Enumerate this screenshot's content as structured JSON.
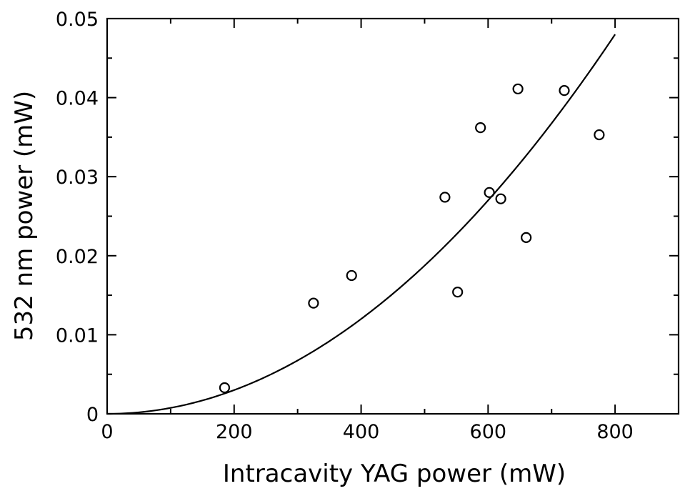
{
  "chart_data": {
    "type": "scatter",
    "title": "",
    "xlabel": "Intracavity YAG power (mW)",
    "ylabel": "532 nm power (mW)",
    "xlim": [
      0,
      900
    ],
    "ylim": [
      0,
      0.05
    ],
    "x_ticks": [
      0,
      200,
      400,
      600,
      800
    ],
    "x_tick_labels": [
      "0",
      "200",
      "400",
      "600",
      "800"
    ],
    "y_ticks": [
      0,
      0.01,
      0.02,
      0.03,
      0.04,
      0.05
    ],
    "y_tick_labels": [
      "0",
      "0.01",
      "0.02",
      "0.03",
      "0.04",
      "0.05"
    ],
    "grid": false,
    "legend": "none",
    "series": [
      {
        "type": "scatter",
        "marker": "open-circle",
        "points": [
          [
            185,
            0.0033
          ],
          [
            325,
            0.014
          ],
          [
            385,
            0.0175
          ],
          [
            532,
            0.0274
          ],
          [
            552,
            0.0154
          ],
          [
            588,
            0.0362
          ],
          [
            602,
            0.028
          ],
          [
            620,
            0.0272
          ],
          [
            647,
            0.0411
          ],
          [
            660,
            0.0223
          ],
          [
            720,
            0.0409
          ],
          [
            775,
            0.0353
          ]
        ]
      },
      {
        "type": "line",
        "curve": "quadratic fit y = 7.5e-8 * x^2",
        "coefficient": 7.5e-08,
        "x_range": [
          0,
          800
        ]
      }
    ]
  }
}
